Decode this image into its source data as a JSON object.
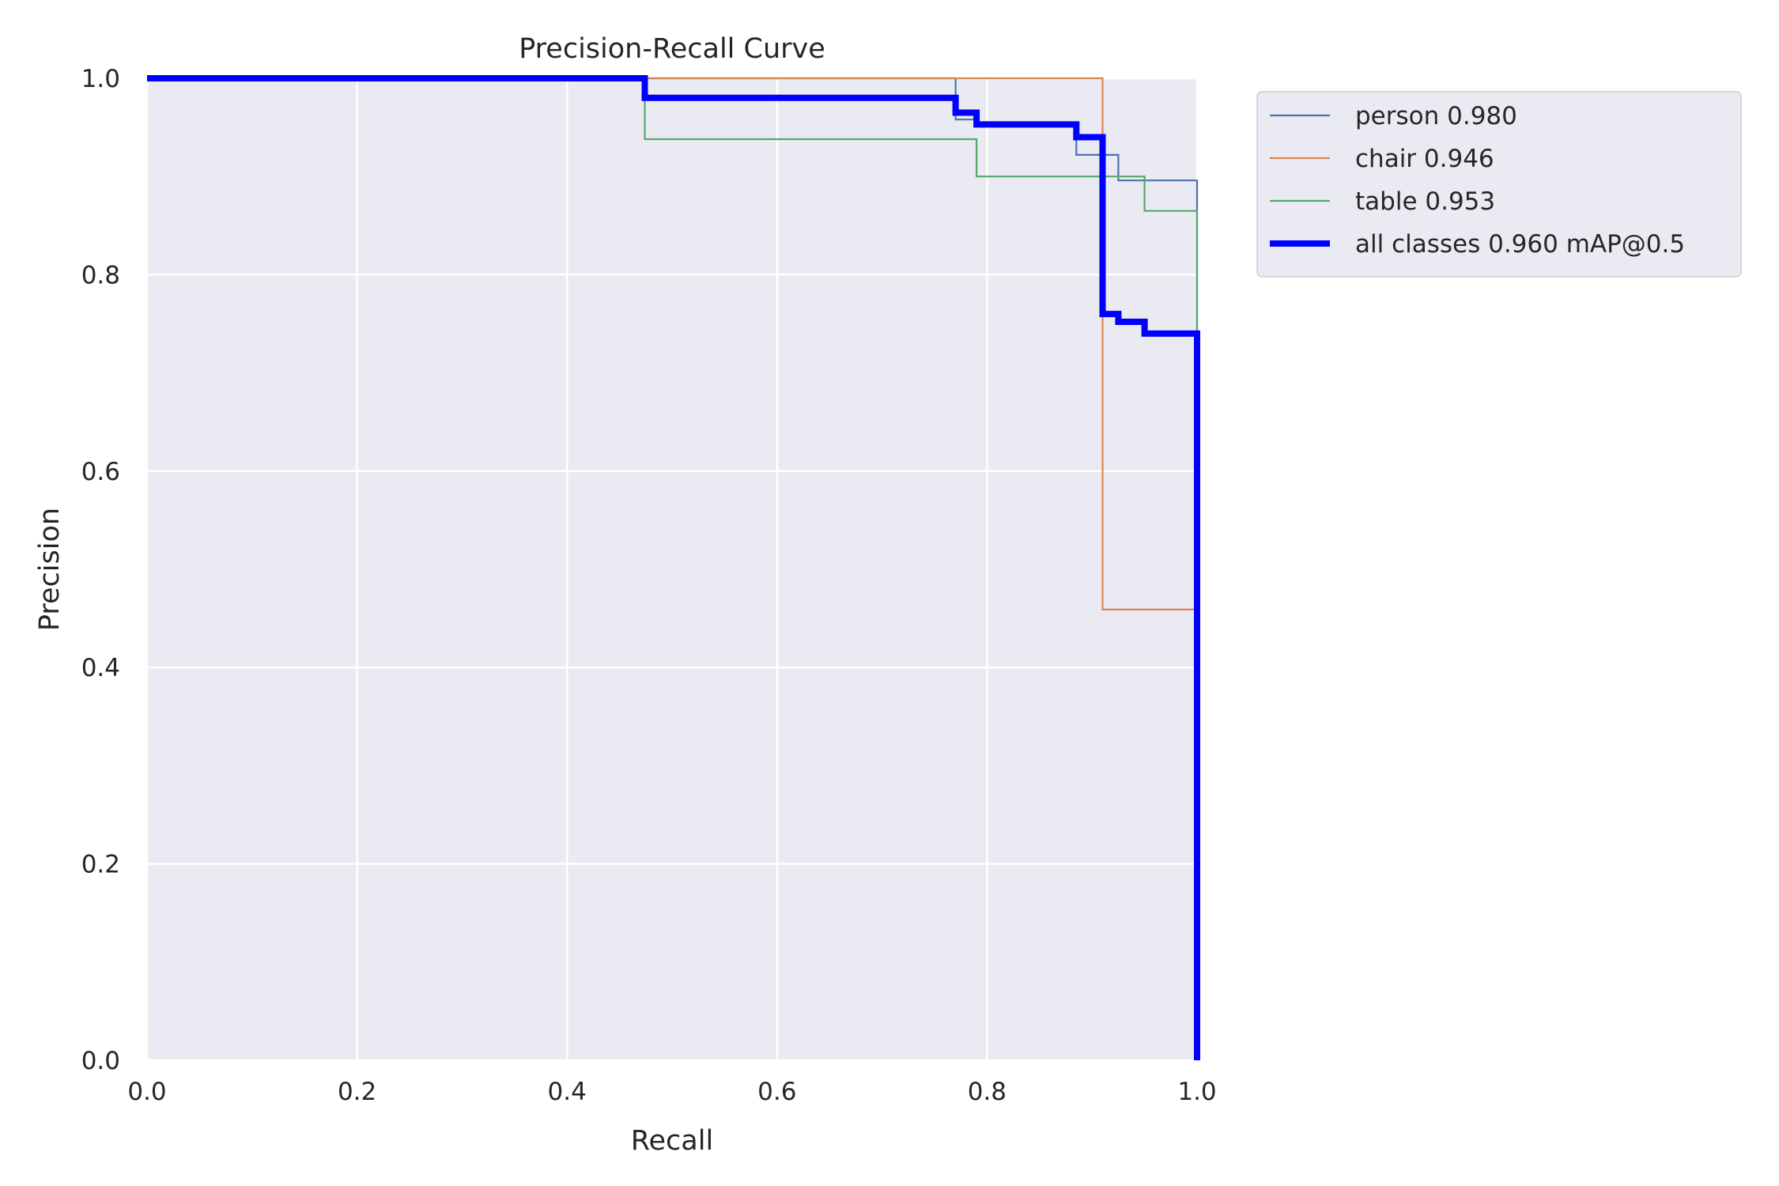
{
  "chart_data": {
    "type": "line",
    "title": "Precision-Recall Curve",
    "xlabel": "Recall",
    "ylabel": "Precision",
    "xlim": [
      0,
      1
    ],
    "ylim": [
      0,
      1
    ],
    "xticks": [
      "0.0",
      "0.2",
      "0.4",
      "0.6",
      "0.8",
      "1.0"
    ],
    "yticks": [
      "0.0",
      "0.2",
      "0.4",
      "0.6",
      "0.8",
      "1.0"
    ],
    "grid": true,
    "legend_position": "outside-top-right",
    "series": [
      {
        "name": "person 0.980",
        "color": "#4c72b0",
        "bold": false,
        "x": [
          0,
          0.77,
          0.77,
          0.79,
          0.79,
          0.885,
          0.885,
          0.925,
          0.925,
          1.0,
          1.0
        ],
        "y": [
          1.0,
          1.0,
          0.958,
          0.958,
          0.955,
          0.955,
          0.922,
          0.922,
          0.896,
          0.896,
          0.0
        ]
      },
      {
        "name": "chair 0.946",
        "color": "#dd8452",
        "bold": false,
        "x": [
          0,
          0.91,
          0.91,
          1.0,
          1.0
        ],
        "y": [
          1.0,
          1.0,
          0.459,
          0.459,
          0.0
        ]
      },
      {
        "name": "table 0.953",
        "color": "#55a868",
        "bold": false,
        "x": [
          0,
          0.474,
          0.474,
          0.79,
          0.79,
          0.95,
          0.95,
          1.0,
          1.0
        ],
        "y": [
          1.0,
          1.0,
          0.938,
          0.938,
          0.9,
          0.9,
          0.865,
          0.865,
          0.0
        ]
      },
      {
        "name": "all classes 0.960 mAP@0.5",
        "color": "#0000ff",
        "bold": true,
        "x": [
          0,
          0.474,
          0.474,
          0.77,
          0.77,
          0.79,
          0.79,
          0.885,
          0.885,
          0.91,
          0.91,
          0.925,
          0.925,
          0.95,
          0.95,
          1.0,
          1.0
        ],
        "y": [
          1.0,
          1.0,
          0.98,
          0.98,
          0.965,
          0.965,
          0.953,
          0.953,
          0.94,
          0.94,
          0.76,
          0.76,
          0.752,
          0.752,
          0.74,
          0.74,
          0.0
        ]
      }
    ]
  }
}
